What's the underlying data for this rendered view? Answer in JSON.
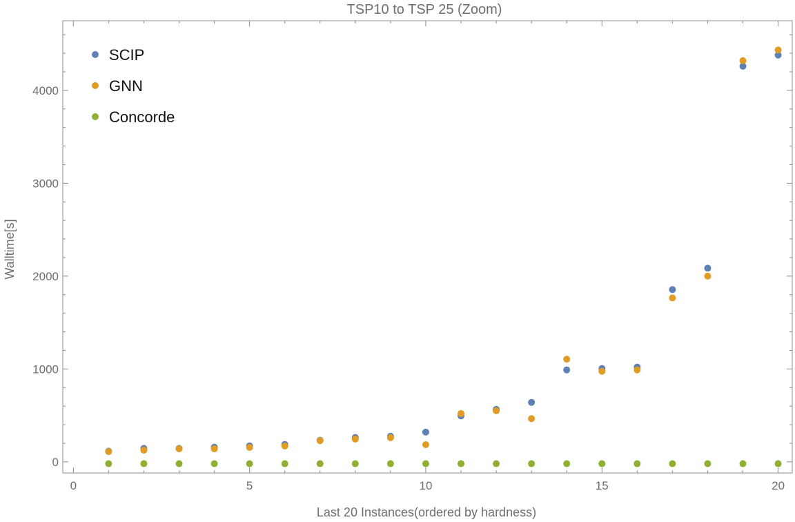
{
  "chart_data": {
    "type": "scatter",
    "title": "TSP10 to TSP 25 (Zoom)",
    "xlabel": "Last 20 Instances(ordered by hardness)",
    "ylabel": "Walltime[s]",
    "xlim": [
      -0.3,
      20.4
    ],
    "ylim": [
      -120,
      4750
    ],
    "x_ticks": [
      0,
      5,
      10,
      15,
      20
    ],
    "y_ticks": [
      0,
      1000,
      2000,
      3000,
      4000
    ],
    "grid": false,
    "legend_position": "top-left",
    "series": [
      {
        "name": "SCIP",
        "color": "#5e81b5",
        "x": [
          1,
          2,
          3,
          4,
          5,
          6,
          7,
          8,
          9,
          10,
          11,
          12,
          13,
          14,
          15,
          16,
          17,
          18,
          19,
          20
        ],
        "y": [
          115,
          145,
          145,
          158,
          172,
          188,
          232,
          262,
          275,
          320,
          495,
          565,
          640,
          990,
          1005,
          1020,
          1855,
          2085,
          4260,
          4380
        ]
      },
      {
        "name": "GNN",
        "color": "#e19c24",
        "x": [
          1,
          2,
          3,
          4,
          5,
          6,
          7,
          8,
          9,
          10,
          11,
          12,
          13,
          14,
          15,
          16,
          17,
          18,
          19,
          20
        ],
        "y": [
          110,
          125,
          140,
          140,
          155,
          170,
          228,
          245,
          260,
          185,
          520,
          550,
          465,
          1105,
          975,
          990,
          1765,
          2000,
          4320,
          4435
        ]
      },
      {
        "name": "Concorde",
        "color": "#8fb032",
        "x": [
          1,
          2,
          3,
          4,
          5,
          6,
          7,
          8,
          9,
          10,
          11,
          12,
          13,
          14,
          15,
          16,
          17,
          18,
          19,
          20
        ],
        "y": [
          -20,
          -20,
          -20,
          -20,
          -20,
          -20,
          -20,
          -20,
          -20,
          -20,
          -20,
          -20,
          -20,
          -20,
          -20,
          -20,
          -20,
          -20,
          -20,
          -20
        ]
      }
    ]
  }
}
